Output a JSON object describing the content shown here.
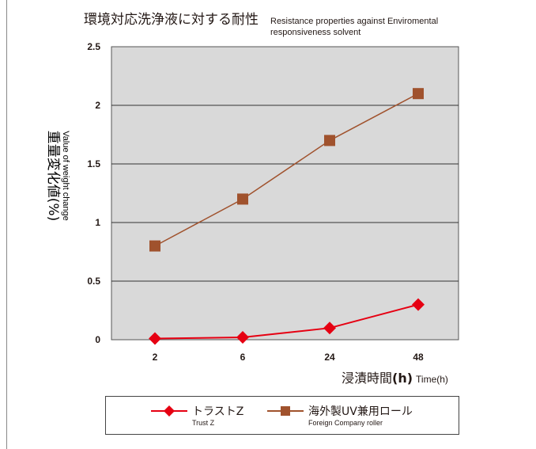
{
  "chart_data": {
    "type": "line",
    "title": "環境対応洗浄液に対する耐性",
    "title_en_line1": "Resistance properties against Enviromental",
    "title_en_line2": "responsiveness solvent",
    "ylabel": "重量変化値(%)",
    "ylabel_en": "Value of weight change",
    "xlabel": "浸漬時間",
    "xlabel_unit": "(h)",
    "xlabel_en": "Time(h)",
    "categories": [
      "2",
      "6",
      "24",
      "48"
    ],
    "ylim": [
      0,
      2.5
    ],
    "yticks": [
      "0",
      "0.5",
      "1",
      "1.5",
      "2",
      "2.5"
    ],
    "grid": true,
    "legend_position": "bottom",
    "plot_background": "#d9d9d9",
    "series": [
      {
        "name": "トラストZ",
        "name_en": "Trust Z",
        "values": [
          0.01,
          0.02,
          0.1,
          0.3
        ],
        "color": "#e60012",
        "marker": "diamond"
      },
      {
        "name": "海外製UV兼用ロール",
        "name_en": "Foreign Company roller",
        "values": [
          0.8,
          1.2,
          1.7,
          2.1
        ],
        "color": "#a0522d",
        "marker": "square"
      }
    ]
  }
}
